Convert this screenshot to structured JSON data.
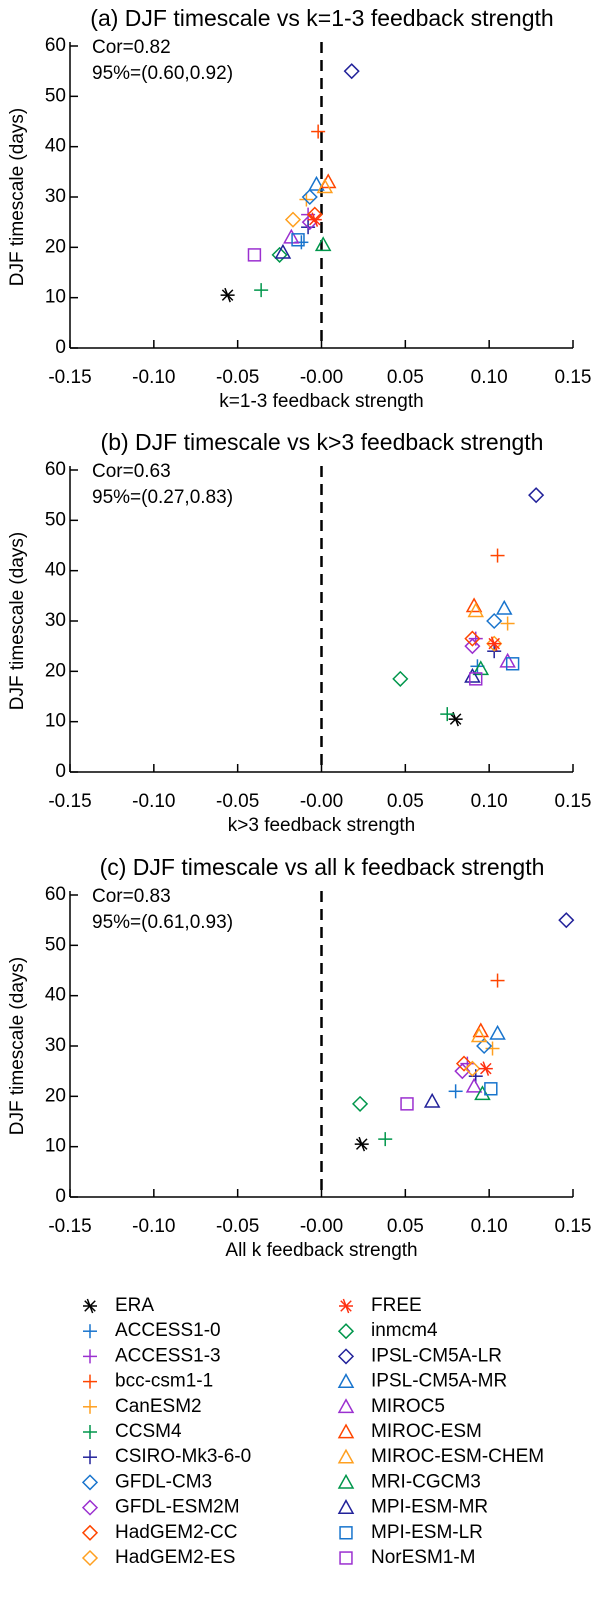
{
  "chart_data": [
    {
      "type": "scatter",
      "title": "(a) DJF timescale vs k=1-3 feedback strength",
      "x_label": "k=1-3 feedback strength",
      "y_label": "DJF timescale (days)",
      "annotations": [
        "Cor=0.82",
        "95%=(0.60,0.92)"
      ],
      "vlines": [
        0
      ],
      "xlim": [
        -0.15,
        0.15
      ],
      "xticks": [
        {
          "value": -0.15,
          "label": "-0.15"
        },
        {
          "value": -0.1,
          "label": "-0.10"
        },
        {
          "value": -0.05,
          "label": "-0.05"
        },
        {
          "value": 0,
          "label": "-0.00"
        },
        {
          "value": 0.05,
          "label": "0.05"
        },
        {
          "value": 0.1,
          "label": "0.10"
        },
        {
          "value": 0.15,
          "label": "0.15"
        }
      ],
      "ylim": [
        0,
        60
      ],
      "yticks": [
        0,
        10,
        20,
        30,
        40,
        50,
        60
      ],
      "series": [
        {
          "name": "ERA",
          "color": "#000000",
          "marker": "asterisk",
          "x": [
            -0.056
          ],
          "values": [
            10.5
          ]
        },
        {
          "name": "ACCESS1-0",
          "color": "#1874cd",
          "marker": "plus",
          "x": [
            -0.012
          ],
          "values": [
            21
          ]
        },
        {
          "name": "ACCESS1-3",
          "color": "#9b30d0",
          "marker": "plus",
          "x": [
            -0.008
          ],
          "values": [
            26.5
          ]
        },
        {
          "name": "bcc-csm1-1",
          "color": "#ff4500",
          "marker": "plus",
          "x": [
            -0.002
          ],
          "values": [
            43
          ]
        },
        {
          "name": "CanESM2",
          "color": "#ffa020",
          "marker": "plus",
          "x": [
            -0.009
          ],
          "values": [
            29.5
          ]
        },
        {
          "name": "CCSM4",
          "color": "#00964b",
          "marker": "plus",
          "x": [
            -0.036
          ],
          "values": [
            11.5
          ]
        },
        {
          "name": "CSIRO-Mk3-6-0",
          "color": "#22229a",
          "marker": "plus",
          "x": [
            -0.008
          ],
          "values": [
            24
          ]
        },
        {
          "name": "GFDL-CM3",
          "color": "#1874cd",
          "marker": "diamond",
          "x": [
            -0.007
          ],
          "values": [
            30
          ]
        },
        {
          "name": "GFDL-ESM2M",
          "color": "#9b30d0",
          "marker": "diamond",
          "x": [
            -0.007
          ],
          "values": [
            25
          ]
        },
        {
          "name": "HadGEM2-CC",
          "color": "#ff4500",
          "marker": "diamond",
          "x": [
            -0.004
          ],
          "values": [
            26.5
          ]
        },
        {
          "name": "HadGEM2-ES",
          "color": "#ffa020",
          "marker": "diamond",
          "x": [
            -0.017
          ],
          "values": [
            25.5
          ]
        },
        {
          "name": "FREE",
          "color": "#ff3010",
          "marker": "asterisk",
          "x": [
            -0.004
          ],
          "values": [
            25.5
          ]
        },
        {
          "name": "inmcm4",
          "color": "#00964b",
          "marker": "diamond",
          "x": [
            -0.025
          ],
          "values": [
            18.5
          ]
        },
        {
          "name": "IPSL-CM5A-LR",
          "color": "#22229a",
          "marker": "diamond",
          "x": [
            0.018
          ],
          "values": [
            55
          ]
        },
        {
          "name": "IPSL-CM5A-MR",
          "color": "#1874cd",
          "marker": "triangle",
          "x": [
            -0.003
          ],
          "values": [
            32.5
          ]
        },
        {
          "name": "MIROC5",
          "color": "#9b30d0",
          "marker": "triangle",
          "x": [
            -0.018
          ],
          "values": [
            22
          ]
        },
        {
          "name": "MIROC-ESM",
          "color": "#ff4500",
          "marker": "triangle",
          "x": [
            0.004
          ],
          "values": [
            33
          ]
        },
        {
          "name": "MIROC-ESM-CHEM",
          "color": "#ffa020",
          "marker": "triangle",
          "x": [
            0.002
          ],
          "values": [
            32
          ]
        },
        {
          "name": "MRI-CGCM3",
          "color": "#00964b",
          "marker": "triangle",
          "x": [
            0.001
          ],
          "values": [
            20.5
          ]
        },
        {
          "name": "MPI-ESM-MR",
          "color": "#22229a",
          "marker": "triangle",
          "x": [
            -0.023
          ],
          "values": [
            19
          ]
        },
        {
          "name": "MPI-ESM-LR",
          "color": "#1874cd",
          "marker": "square",
          "x": [
            -0.014
          ],
          "values": [
            21.5
          ]
        },
        {
          "name": "NorESM1-M",
          "color": "#9b30d0",
          "marker": "square",
          "x": [
            -0.04
          ],
          "values": [
            18.5
          ]
        }
      ]
    },
    {
      "type": "scatter",
      "title": "(b) DJF timescale vs k>3 feedback strength",
      "x_label": "k>3 feedback strength",
      "y_label": "DJF timescale (days)",
      "annotations": [
        "Cor=0.63",
        "95%=(0.27,0.83)"
      ],
      "vlines": [
        0
      ],
      "xlim": [
        -0.15,
        0.15
      ],
      "xticks": [
        {
          "value": -0.15,
          "label": "-0.15"
        },
        {
          "value": -0.1,
          "label": "-0.10"
        },
        {
          "value": -0.05,
          "label": "-0.05"
        },
        {
          "value": 0,
          "label": "-0.00"
        },
        {
          "value": 0.05,
          "label": "0.05"
        },
        {
          "value": 0.1,
          "label": "0.10"
        },
        {
          "value": 0.15,
          "label": "0.15"
        }
      ],
      "ylim": [
        0,
        60
      ],
      "yticks": [
        0,
        10,
        20,
        30,
        40,
        50,
        60
      ],
      "series": [
        {
          "name": "ERA",
          "color": "#000000",
          "marker": "asterisk",
          "x": [
            0.08
          ],
          "values": [
            10.5
          ]
        },
        {
          "name": "ACCESS1-0",
          "color": "#1874cd",
          "marker": "plus",
          "x": [
            0.093
          ],
          "values": [
            21
          ]
        },
        {
          "name": "ACCESS1-3",
          "color": "#9b30d0",
          "marker": "plus",
          "x": [
            0.092
          ],
          "values": [
            26.5
          ]
        },
        {
          "name": "bcc-csm1-1",
          "color": "#ff4500",
          "marker": "plus",
          "x": [
            0.105
          ],
          "values": [
            43
          ]
        },
        {
          "name": "CanESM2",
          "color": "#ffa020",
          "marker": "plus",
          "x": [
            0.111
          ],
          "values": [
            29.5
          ]
        },
        {
          "name": "CCSM4",
          "color": "#00964b",
          "marker": "plus",
          "x": [
            0.075
          ],
          "values": [
            11.5
          ]
        },
        {
          "name": "CSIRO-Mk3-6-0",
          "color": "#22229a",
          "marker": "plus",
          "x": [
            0.103
          ],
          "values": [
            24
          ]
        },
        {
          "name": "GFDL-CM3",
          "color": "#1874cd",
          "marker": "diamond",
          "x": [
            0.103
          ],
          "values": [
            30
          ]
        },
        {
          "name": "GFDL-ESM2M",
          "color": "#9b30d0",
          "marker": "diamond",
          "x": [
            0.09
          ],
          "values": [
            25
          ]
        },
        {
          "name": "HadGEM2-CC",
          "color": "#ff4500",
          "marker": "diamond",
          "x": [
            0.09
          ],
          "values": [
            26.5
          ]
        },
        {
          "name": "HadGEM2-ES",
          "color": "#ffa020",
          "marker": "diamond",
          "x": [
            0.103
          ],
          "values": [
            25.5
          ]
        },
        {
          "name": "FREE",
          "color": "#ff3010",
          "marker": "asterisk",
          "x": [
            0.103
          ],
          "values": [
            25.5
          ]
        },
        {
          "name": "inmcm4",
          "color": "#00964b",
          "marker": "diamond",
          "x": [
            0.047
          ],
          "values": [
            18.5
          ]
        },
        {
          "name": "IPSL-CM5A-LR",
          "color": "#22229a",
          "marker": "diamond",
          "x": [
            0.128
          ],
          "values": [
            55
          ]
        },
        {
          "name": "IPSL-CM5A-MR",
          "color": "#1874cd",
          "marker": "triangle",
          "x": [
            0.109
          ],
          "values": [
            32.5
          ]
        },
        {
          "name": "MIROC5",
          "color": "#9b30d0",
          "marker": "triangle",
          "x": [
            0.111
          ],
          "values": [
            22
          ]
        },
        {
          "name": "MIROC-ESM",
          "color": "#ff4500",
          "marker": "triangle",
          "x": [
            0.091
          ],
          "values": [
            33
          ]
        },
        {
          "name": "MIROC-ESM-CHEM",
          "color": "#ffa020",
          "marker": "triangle",
          "x": [
            0.092
          ],
          "values": [
            32
          ]
        },
        {
          "name": "MRI-CGCM3",
          "color": "#00964b",
          "marker": "triangle",
          "x": [
            0.095
          ],
          "values": [
            20.5
          ]
        },
        {
          "name": "MPI-ESM-MR",
          "color": "#22229a",
          "marker": "triangle",
          "x": [
            0.09
          ],
          "values": [
            19
          ]
        },
        {
          "name": "MPI-ESM-LR",
          "color": "#1874cd",
          "marker": "square",
          "x": [
            0.114
          ],
          "values": [
            21.5
          ]
        },
        {
          "name": "NorESM1-M",
          "color": "#9b30d0",
          "marker": "square",
          "x": [
            0.092
          ],
          "values": [
            18.5
          ]
        }
      ]
    },
    {
      "type": "scatter",
      "title": "(c) DJF timescale vs all k feedback strength",
      "x_label": "All k feedback strength",
      "y_label": "DJF timescale (days)",
      "annotations": [
        "Cor=0.83",
        "95%=(0.61,0.93)"
      ],
      "vlines": [
        0
      ],
      "xlim": [
        -0.15,
        0.15
      ],
      "xticks": [
        {
          "value": -0.15,
          "label": "-0.15"
        },
        {
          "value": -0.1,
          "label": "-0.10"
        },
        {
          "value": -0.05,
          "label": "-0.05"
        },
        {
          "value": 0,
          "label": "-0.00"
        },
        {
          "value": 0.05,
          "label": "0.05"
        },
        {
          "value": 0.1,
          "label": "0.10"
        },
        {
          "value": 0.15,
          "label": "0.15"
        }
      ],
      "ylim": [
        0,
        60
      ],
      "yticks": [
        0,
        10,
        20,
        30,
        40,
        50,
        60
      ],
      "series": [
        {
          "name": "ERA",
          "color": "#000000",
          "marker": "asterisk",
          "x": [
            0.024
          ],
          "values": [
            10.5
          ]
        },
        {
          "name": "ACCESS1-0",
          "color": "#1874cd",
          "marker": "plus",
          "x": [
            0.08
          ],
          "values": [
            21
          ]
        },
        {
          "name": "ACCESS1-3",
          "color": "#9b30d0",
          "marker": "plus",
          "x": [
            0.087
          ],
          "values": [
            26.5
          ]
        },
        {
          "name": "bcc-csm1-1",
          "color": "#ff4500",
          "marker": "plus",
          "x": [
            0.105
          ],
          "values": [
            43
          ]
        },
        {
          "name": "CanESM2",
          "color": "#ffa020",
          "marker": "plus",
          "x": [
            0.102
          ],
          "values": [
            29.5
          ]
        },
        {
          "name": "CCSM4",
          "color": "#00964b",
          "marker": "plus",
          "x": [
            0.038
          ],
          "values": [
            11.5
          ]
        },
        {
          "name": "CSIRO-Mk3-6-0",
          "color": "#22229a",
          "marker": "plus",
          "x": [
            0.092
          ],
          "values": [
            24
          ]
        },
        {
          "name": "GFDL-CM3",
          "color": "#1874cd",
          "marker": "diamond",
          "x": [
            0.097
          ],
          "values": [
            30
          ]
        },
        {
          "name": "GFDL-ESM2M",
          "color": "#9b30d0",
          "marker": "diamond",
          "x": [
            0.084
          ],
          "values": [
            25
          ]
        },
        {
          "name": "HadGEM2-CC",
          "color": "#ff4500",
          "marker": "diamond",
          "x": [
            0.085
          ],
          "values": [
            26.5
          ]
        },
        {
          "name": "HadGEM2-ES",
          "color": "#ffa020",
          "marker": "diamond",
          "x": [
            0.09
          ],
          "values": [
            25.5
          ]
        },
        {
          "name": "FREE",
          "color": "#ff3010",
          "marker": "asterisk",
          "x": [
            0.098
          ],
          "values": [
            25.5
          ]
        },
        {
          "name": "inmcm4",
          "color": "#00964b",
          "marker": "diamond",
          "x": [
            0.023
          ],
          "values": [
            18.5
          ]
        },
        {
          "name": "IPSL-CM5A-LR",
          "color": "#22229a",
          "marker": "diamond",
          "x": [
            0.146
          ],
          "values": [
            55
          ]
        },
        {
          "name": "IPSL-CM5A-MR",
          "color": "#1874cd",
          "marker": "triangle",
          "x": [
            0.105
          ],
          "values": [
            32.5
          ]
        },
        {
          "name": "MIROC5",
          "color": "#9b30d0",
          "marker": "triangle",
          "x": [
            0.091
          ],
          "values": [
            22
          ]
        },
        {
          "name": "MIROC-ESM",
          "color": "#ff4500",
          "marker": "triangle",
          "x": [
            0.095
          ],
          "values": [
            33
          ]
        },
        {
          "name": "MIROC-ESM-CHEM",
          "color": "#ffa020",
          "marker": "triangle",
          "x": [
            0.094
          ],
          "values": [
            32
          ]
        },
        {
          "name": "MRI-CGCM3",
          "color": "#00964b",
          "marker": "triangle",
          "x": [
            0.096
          ],
          "values": [
            20.5
          ]
        },
        {
          "name": "MPI-ESM-MR",
          "color": "#22229a",
          "marker": "triangle",
          "x": [
            0.066
          ],
          "values": [
            19
          ]
        },
        {
          "name": "MPI-ESM-LR",
          "color": "#1874cd",
          "marker": "square",
          "x": [
            0.101
          ],
          "values": [
            21.5
          ]
        },
        {
          "name": "NorESM1-M",
          "color": "#9b30d0",
          "marker": "square",
          "x": [
            0.051
          ],
          "values": [
            18.5
          ]
        }
      ]
    }
  ]
}
